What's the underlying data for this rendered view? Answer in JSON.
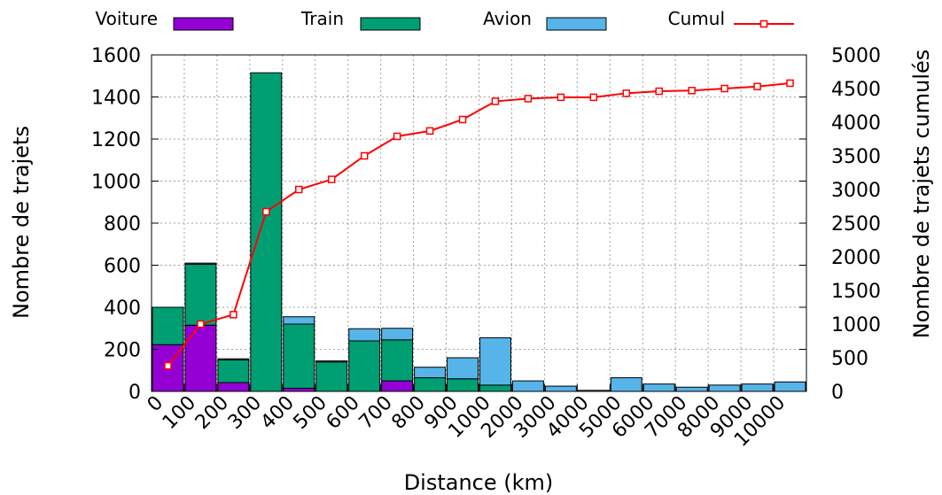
{
  "chart_data": {
    "type": "bar",
    "stacked": true,
    "xlabel": "Distance (km)",
    "ylabel": "Nombre de trajets",
    "y2label": "Nombre de trajets cumulés",
    "ylim": [
      0,
      1600
    ],
    "y2lim": [
      0,
      5000
    ],
    "yticks": [
      "0",
      "200",
      "400",
      "600",
      "800",
      "1000",
      "1200",
      "1400",
      "1600"
    ],
    "y2ticks": [
      "0",
      "500",
      "1000",
      "1500",
      "2000",
      "2500",
      "3000",
      "3500",
      "4000",
      "4500",
      "5000"
    ],
    "grid": true,
    "legend_position": "top",
    "categories": [
      "0",
      "100",
      "200",
      "300",
      "400",
      "500",
      "600",
      "700",
      "800",
      "900",
      "1000",
      "2000",
      "3000",
      "4000",
      "5000",
      "6000",
      "7000",
      "8000",
      "9000",
      "10000"
    ],
    "series": [
      {
        "name": "Voiture",
        "color": "#9400d3",
        "values": [
          222,
          315,
          42,
          0,
          15,
          0,
          0,
          50,
          0,
          0,
          0,
          0,
          0,
          0,
          0,
          0,
          0,
          0,
          0,
          0
        ]
      },
      {
        "name": "Train",
        "color": "#009e73",
        "values": [
          178,
          290,
          108,
          1515,
          305,
          140,
          240,
          195,
          65,
          60,
          30,
          0,
          0,
          0,
          0,
          0,
          0,
          0,
          0,
          0
        ]
      },
      {
        "name": "Avion",
        "color": "#56b4e9",
        "values": [
          0,
          5,
          5,
          0,
          35,
          5,
          58,
          55,
          50,
          100,
          225,
          50,
          25,
          5,
          65,
          35,
          20,
          30,
          35,
          45
        ]
      }
    ],
    "cumul": {
      "name": "Cumul",
      "color": "#ff0000",
      "values": [
        380,
        1000,
        1140,
        2670,
        3000,
        3150,
        3500,
        3790,
        3870,
        4040,
        4310,
        4350,
        4370,
        4370,
        4430,
        4460,
        4470,
        4500,
        4530,
        4580
      ]
    }
  }
}
